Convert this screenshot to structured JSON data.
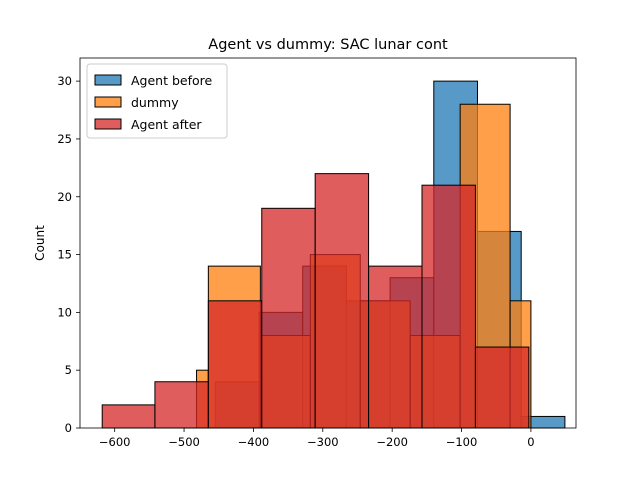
{
  "chart_data": {
    "type": "bar",
    "title": "Agent vs dummy: SAC lunar cont",
    "xlabel": "",
    "ylabel": "Count",
    "xlim": [
      -650,
      65
    ],
    "ylim": [
      0,
      32
    ],
    "xticks": [
      -600,
      -500,
      -400,
      -300,
      -200,
      -100,
      0
    ],
    "yticks": [
      0,
      5,
      10,
      15,
      20,
      25,
      30
    ],
    "xtick_labels": [
      "−600",
      "−500",
      "−400",
      "−300",
      "−200",
      "−100",
      "0"
    ],
    "ytick_labels": [
      "0",
      "5",
      "10",
      "15",
      "20",
      "25",
      "30"
    ],
    "legend_position": "upper-left",
    "series": [
      {
        "name": "Agent before",
        "color": "#1f77b4",
        "bins": [
          {
            "x0": -455,
            "x1": -392,
            "count": 4
          },
          {
            "x0": -392,
            "x1": -329,
            "count": 10
          },
          {
            "x0": -329,
            "x1": -266,
            "count": 14
          },
          {
            "x0": -266,
            "x1": -203,
            "count": 11
          },
          {
            "x0": -203,
            "x1": -140,
            "count": 13
          },
          {
            "x0": -140,
            "x1": -77,
            "count": 30
          },
          {
            "x0": -77,
            "x1": -14,
            "count": 17
          },
          {
            "x0": -14,
            "x1": 49,
            "count": 1
          }
        ]
      },
      {
        "name": "dummy",
        "color": "#ff7f0e",
        "bins": [
          {
            "x0": -482,
            "x1": -465,
            "count": 5
          },
          {
            "x0": -465,
            "x1": -390,
            "count": 14
          },
          {
            "x0": -390,
            "x1": -318,
            "count": 8
          },
          {
            "x0": -318,
            "x1": -246,
            "count": 15
          },
          {
            "x0": -246,
            "x1": -174,
            "count": 11
          },
          {
            "x0": -174,
            "x1": -102,
            "count": 8
          },
          {
            "x0": -102,
            "x1": -30,
            "count": 28
          },
          {
            "x0": -30,
            "x1": 0,
            "count": 11
          }
        ]
      },
      {
        "name": "Agent after",
        "color": "#d62728",
        "bins": [
          {
            "x0": -618,
            "x1": -542,
            "count": 2
          },
          {
            "x0": -542,
            "x1": -465,
            "count": 4
          },
          {
            "x0": -465,
            "x1": -388,
            "count": 11
          },
          {
            "x0": -388,
            "x1": -311,
            "count": 19
          },
          {
            "x0": -311,
            "x1": -234,
            "count": 22
          },
          {
            "x0": -234,
            "x1": -157,
            "count": 14
          },
          {
            "x0": -157,
            "x1": -80,
            "count": 21
          },
          {
            "x0": -80,
            "x1": -3,
            "count": 7
          }
        ]
      }
    ]
  }
}
